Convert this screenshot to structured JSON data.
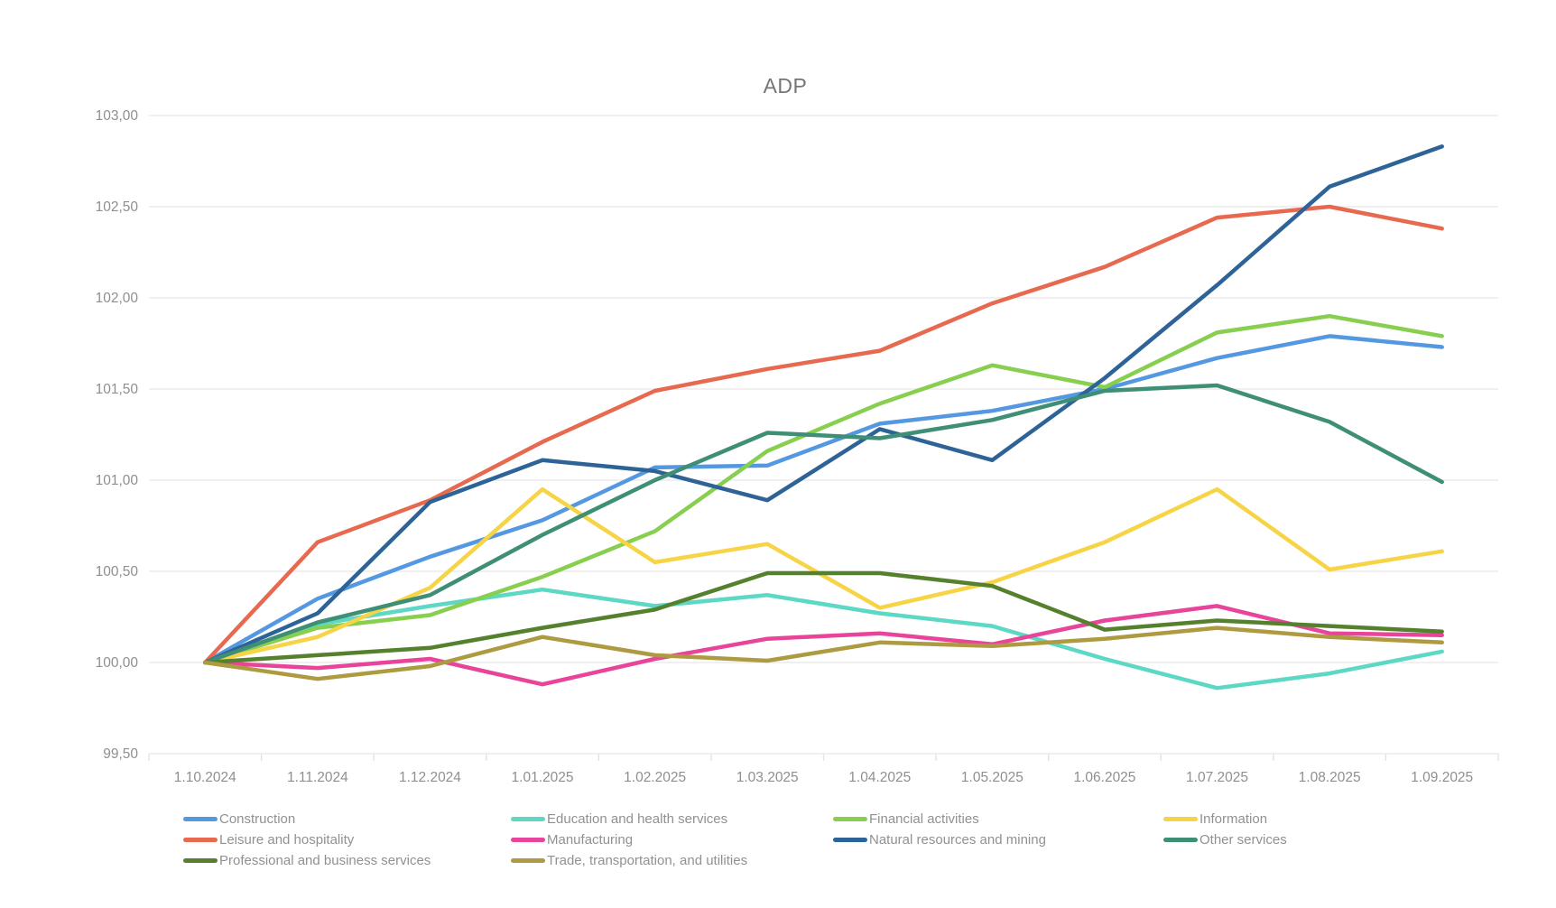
{
  "title": "ADP",
  "legend": {
    "items": [
      {
        "label": "Construction",
        "color": "#5598e2"
      },
      {
        "label": "Education and health services",
        "color": "#5cd8c4"
      },
      {
        "label": "Financial activities",
        "color": "#88cf50"
      },
      {
        "label": "Information",
        "color": "#f6d445"
      },
      {
        "label": "Leisure and hospitality",
        "color": "#e76a50"
      },
      {
        "label": "Manufacturing",
        "color": "#e8449a"
      },
      {
        "label": "Natural resources and mining",
        "color": "#2d6397"
      },
      {
        "label": "Other services",
        "color": "#3f8e76"
      },
      {
        "label": "Professional and business services",
        "color": "#55812f"
      },
      {
        "label": "Trade, transportation, and utilities",
        "color": "#ae9a41"
      }
    ]
  },
  "chart_data": {
    "type": "line",
    "title": "ADP",
    "xlabel": "",
    "ylabel": "",
    "ylim": [
      99.5,
      103.0
    ],
    "grid": "horizontal",
    "legend_position": "bottom",
    "categories": [
      "1.10.2024",
      "1.11.2024",
      "1.12.2024",
      "1.01.2025",
      "1.02.2025",
      "1.03.2025",
      "1.04.2025",
      "1.05.2025",
      "1.06.2025",
      "1.07.2025",
      "1.08.2025",
      "1.09.2025"
    ],
    "y_ticks": [
      {
        "value": 103.0,
        "label": "103,00"
      },
      {
        "value": 102.5,
        "label": "102,50"
      },
      {
        "value": 102.0,
        "label": "102,00"
      },
      {
        "value": 101.5,
        "label": "101,50"
      },
      {
        "value": 101.0,
        "label": "101,00"
      },
      {
        "value": 100.5,
        "label": "100,50"
      },
      {
        "value": 100.0,
        "label": "100,00"
      },
      {
        "value": 99.5,
        "label": "99,50"
      }
    ],
    "series": [
      {
        "name": "Construction",
        "color": "#5598e2",
        "values": [
          100.0,
          100.35,
          100.58,
          100.78,
          101.07,
          101.08,
          101.31,
          101.38,
          101.5,
          101.67,
          101.79,
          101.73
        ]
      },
      {
        "name": "Education and health services",
        "color": "#5cd8c4",
        "values": [
          100.0,
          100.21,
          100.31,
          100.4,
          100.31,
          100.37,
          100.27,
          100.2,
          100.02,
          99.86,
          99.94,
          100.06
        ]
      },
      {
        "name": "Financial activities",
        "color": "#88cf50",
        "values": [
          100.0,
          100.19,
          100.26,
          100.47,
          100.72,
          101.16,
          101.42,
          101.63,
          101.51,
          101.81,
          101.9,
          101.79
        ]
      },
      {
        "name": "Information",
        "color": "#f6d445",
        "values": [
          100.0,
          100.14,
          100.41,
          100.95,
          100.55,
          100.65,
          100.3,
          100.44,
          100.66,
          100.95,
          100.51,
          100.61
        ]
      },
      {
        "name": "Leisure and hospitality",
        "color": "#e76a50",
        "values": [
          100.0,
          100.66,
          100.89,
          101.21,
          101.49,
          101.61,
          101.71,
          101.97,
          102.17,
          102.44,
          102.5,
          102.38
        ]
      },
      {
        "name": "Manufacturing",
        "color": "#e8449a",
        "values": [
          100.0,
          99.97,
          100.02,
          99.88,
          100.02,
          100.13,
          100.16,
          100.1,
          100.23,
          100.31,
          100.16,
          100.15
        ]
      },
      {
        "name": "Natural resources and mining",
        "color": "#2d6397",
        "values": [
          100.0,
          100.27,
          100.88,
          101.11,
          101.05,
          100.89,
          101.28,
          101.11,
          101.56,
          102.07,
          102.61,
          102.83
        ]
      },
      {
        "name": "Other services",
        "color": "#3f8e76",
        "values": [
          100.0,
          100.22,
          100.37,
          100.7,
          101.0,
          101.26,
          101.23,
          101.33,
          101.49,
          101.52,
          101.32,
          100.99
        ]
      },
      {
        "name": "Professional and business services",
        "color": "#55812f",
        "values": [
          100.0,
          100.04,
          100.08,
          100.19,
          100.29,
          100.49,
          100.49,
          100.42,
          100.18,
          100.23,
          100.2,
          100.17
        ]
      },
      {
        "name": "Trade, transportation, and utilities",
        "color": "#ae9a41",
        "values": [
          100.0,
          99.91,
          99.98,
          100.14,
          100.04,
          100.01,
          100.11,
          100.09,
          100.13,
          100.19,
          100.14,
          100.11
        ]
      }
    ]
  }
}
